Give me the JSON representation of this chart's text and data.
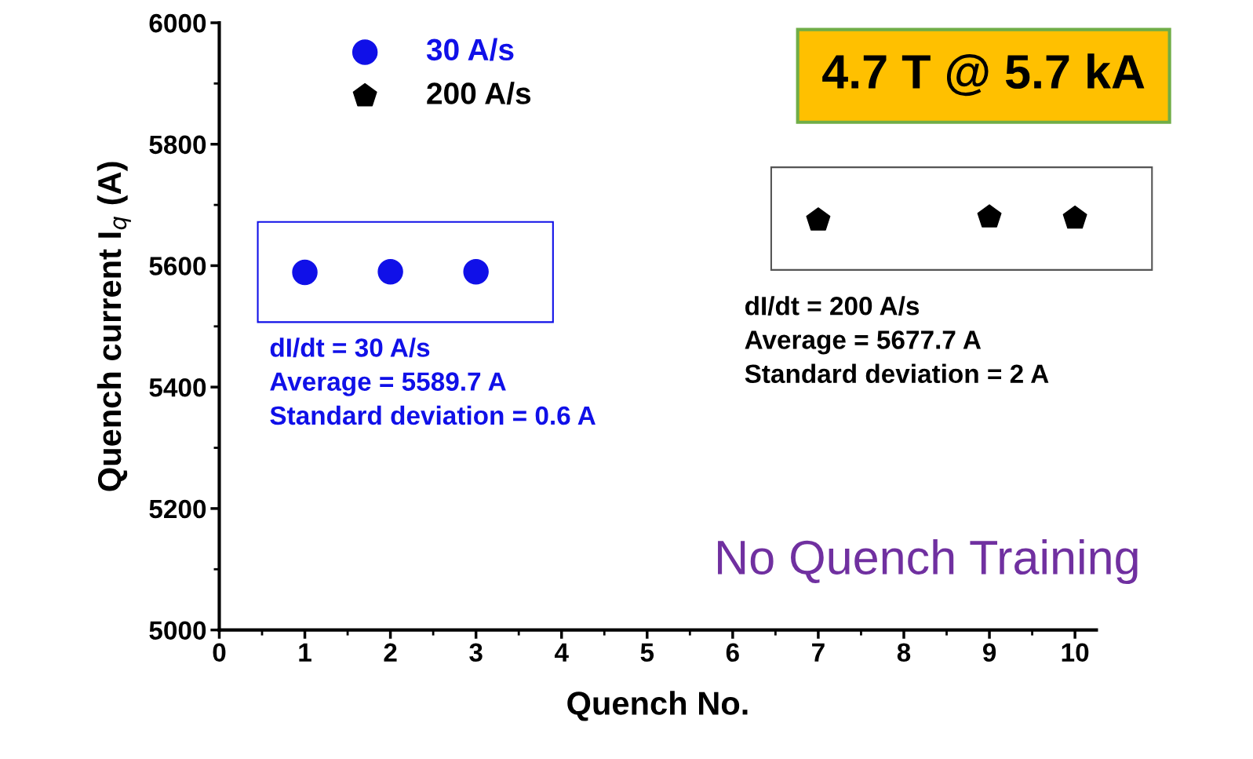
{
  "chart_data": {
    "type": "scatter",
    "xlabel": "Quench No.",
    "ylabel": "Quench current I$_{q}$ (A)",
    "xlim": [
      0,
      10.25
    ],
    "xticks": [
      0,
      1,
      2,
      3,
      4,
      5,
      6,
      7,
      8,
      9,
      10
    ],
    "ylim": [
      5000,
      6000
    ],
    "yticks": [
      5000,
      5200,
      5400,
      5600,
      5800,
      6000
    ],
    "grid": false,
    "legend": "top left",
    "series": [
      {
        "name": "30 A/s",
        "color": "#1010e8",
        "marker": "circle",
        "x": [
          1,
          2,
          3
        ],
        "values": [
          5589,
          5590,
          5590
        ]
      },
      {
        "name": "200 A/s",
        "color": "#000000",
        "x": [
          7,
          9,
          10
        ],
        "values": [
          5675,
          5680,
          5678
        ]
      }
    ],
    "annotations": [
      "dI/dt = 30 A/s\nAverage = 5589.7 A\nStandard deviation = 0.6 A",
      "dI/dt = 200 A/s\nAverage = 5677.7 A\nStandard deviation = 2 A",
      "4.7 T @ 5.7 kA",
      "No Quench Training"
    ]
  }
}
